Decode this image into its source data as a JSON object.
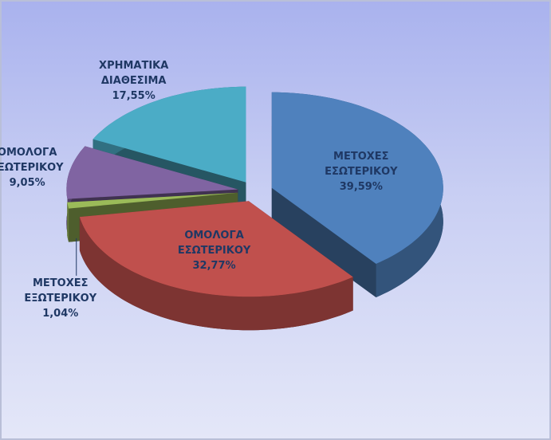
{
  "chart_data": {
    "type": "pie3d",
    "categories": [
      "ΜΕΤΟΧΕΣ ΕΣΩΤΕΡΙΚΟΥ",
      "ΟΜΟΛΟΓΑ ΕΣΩΤΕΡΙΚΟΥ",
      "ΜΕΤΟΧΕΣ ΕΞΩΤΕΡΙΚΟΥ",
      "ΟΜΟΛΟΓΑ ΕΞΩΤΕΡΙΚΟΥ",
      "ΧΡΗΜΑΤΙΚΑ ΔΙΑΘΕΣΙΜΑ"
    ],
    "values": [
      39.59,
      32.77,
      1.04,
      9.05,
      17.55
    ],
    "value_labels": [
      "39,59%",
      "32,77%",
      "1,04%",
      "9,05%",
      "17,55%"
    ],
    "colors": [
      "#4f81bd",
      "#c0504d",
      "#9bbb59",
      "#8064a2",
      "#4bacc6"
    ]
  }
}
